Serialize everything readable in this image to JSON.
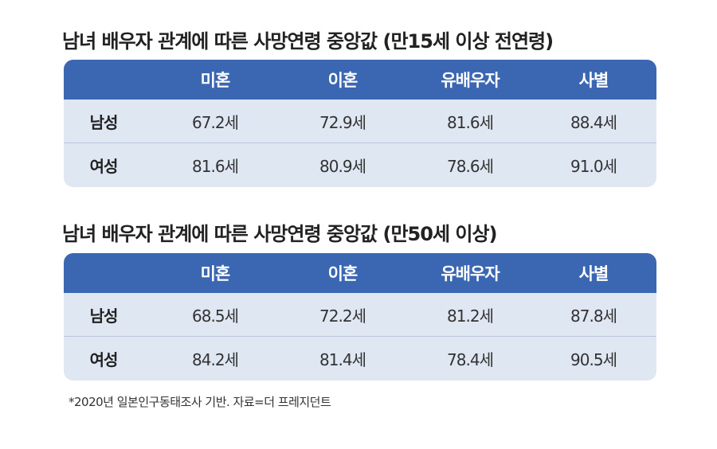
{
  "tables": [
    {
      "title": "남녀 배우자 관계에 따른 사망연령 중앙값 (만15세 이상 전연령)",
      "columns": [
        "미혼",
        "이혼",
        "유배우자",
        "사별"
      ],
      "rows": [
        {
          "label": "남성",
          "cells": [
            "67.2세",
            "72.9세",
            "81.6세",
            "88.4세"
          ]
        },
        {
          "label": "여성",
          "cells": [
            "81.6세",
            "80.9세",
            "78.6세",
            "91.0세"
          ]
        }
      ]
    },
    {
      "title": "남녀 배우자 관계에 따른 사망연령 중앙값 (만50세 이상)",
      "columns": [
        "미혼",
        "이혼",
        "유배우자",
        "사별"
      ],
      "rows": [
        {
          "label": "남성",
          "cells": [
            "68.5세",
            "72.2세",
            "81.2세",
            "87.8세"
          ]
        },
        {
          "label": "여성",
          "cells": [
            "84.2세",
            "81.4세",
            "78.4세",
            "90.5세"
          ]
        }
      ]
    }
  ],
  "footnote": "*2020년 일본인구동태조사 기반. 자료=더 프레지던트"
}
